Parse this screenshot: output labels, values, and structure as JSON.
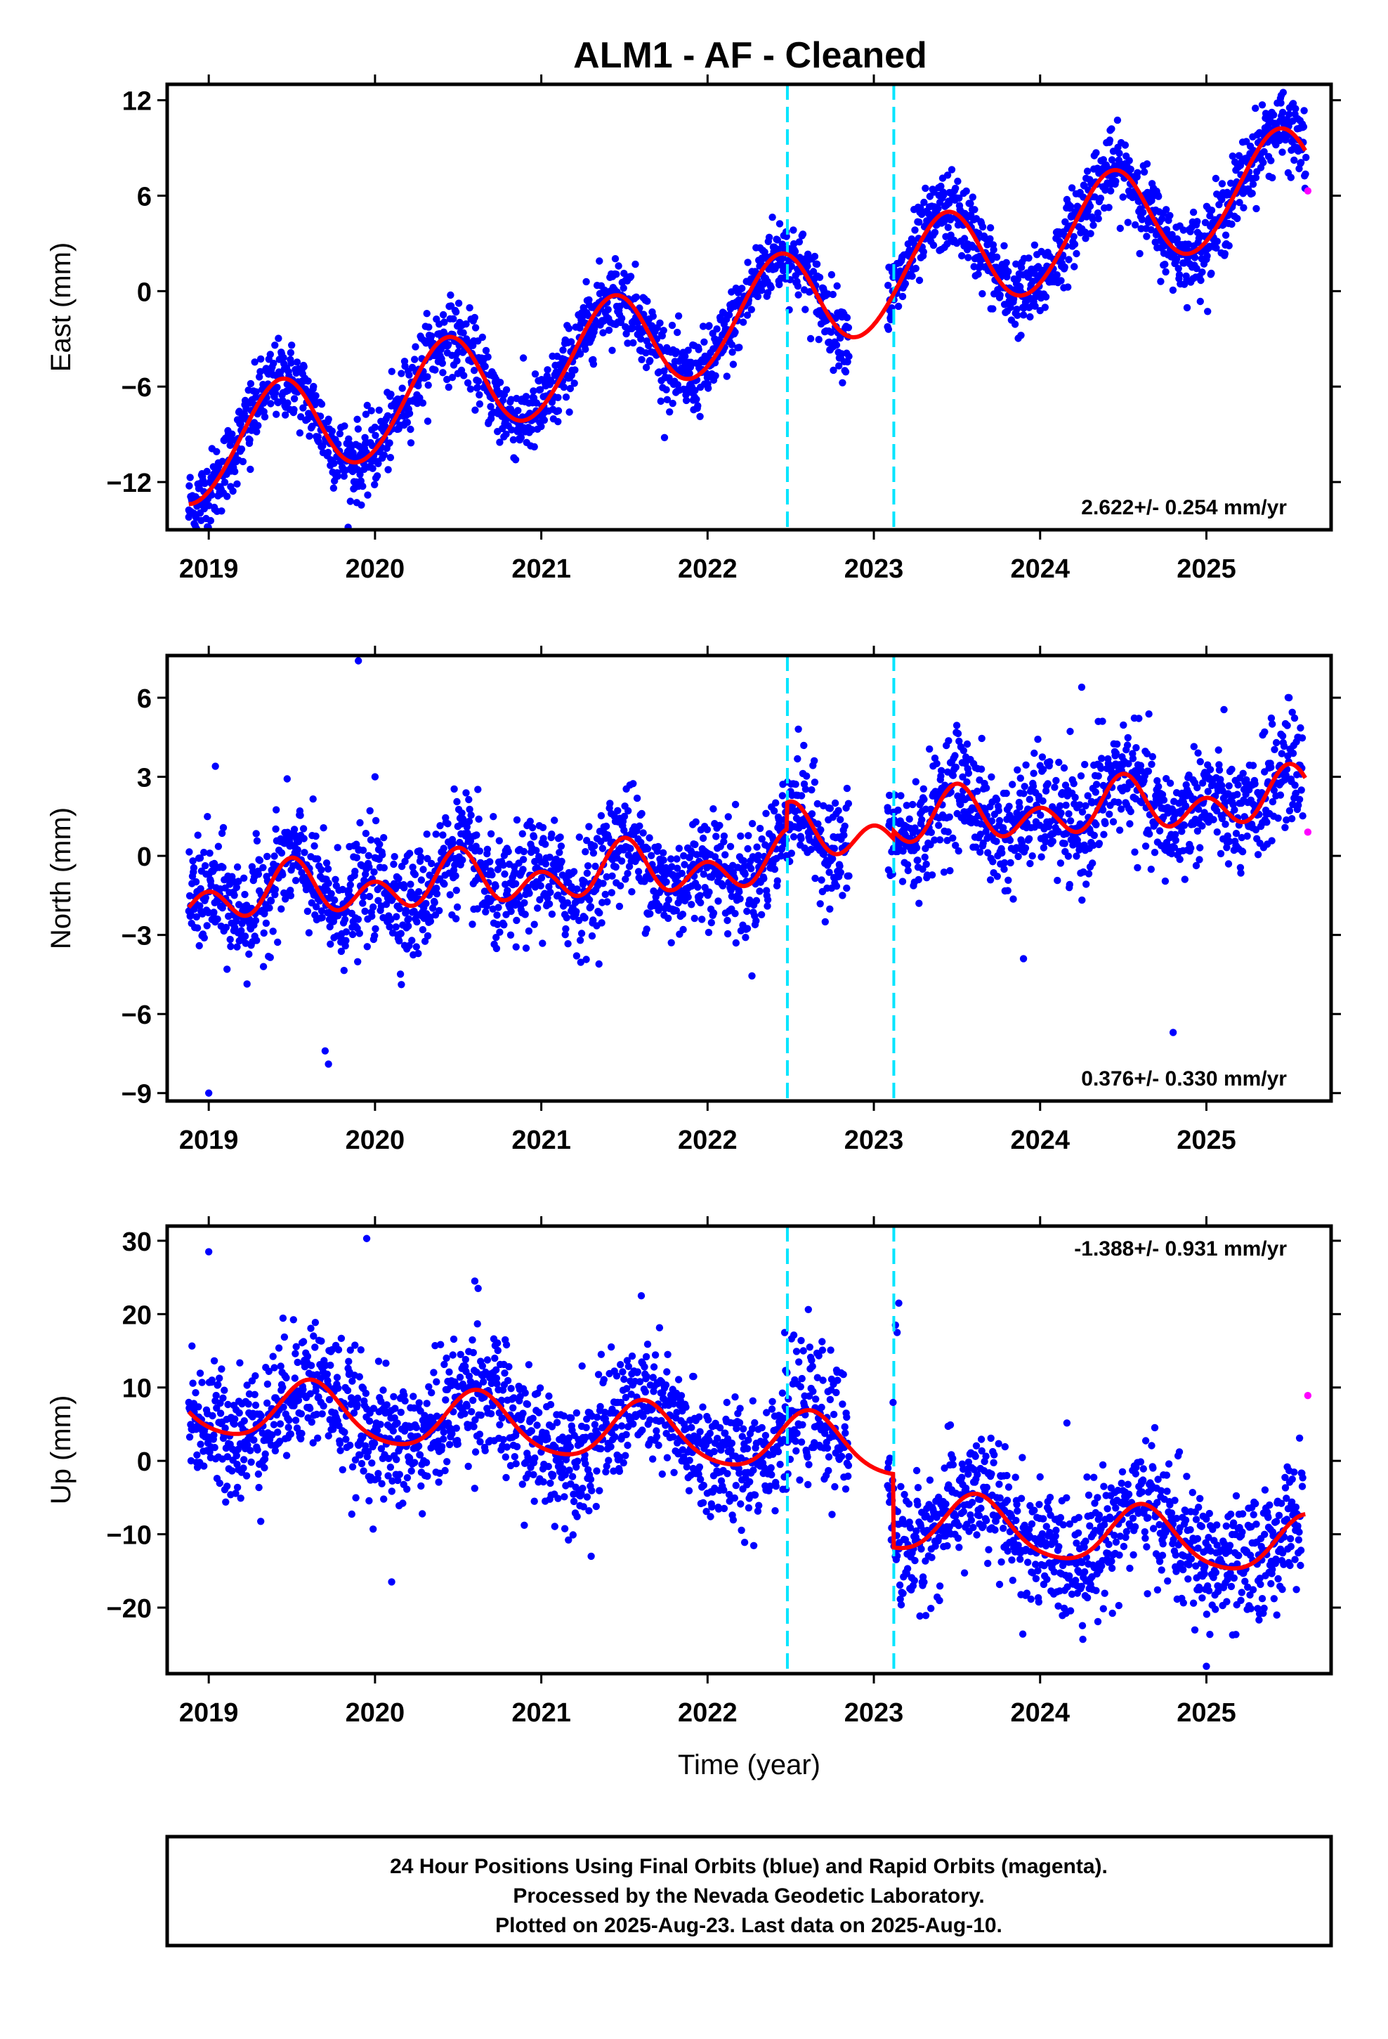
{
  "title": "ALM1  - AF - Cleaned",
  "colors": {
    "final_orbits": "#0000ff",
    "rapid_orbits": "#ff00ff",
    "model_fit": "#ff0000",
    "breaks": "#00e5ff"
  },
  "chart_data": [
    {
      "type": "scatter",
      "ylabel": "East (mm)",
      "xlabel": "",
      "xlim": [
        2018.75,
        2025.75
      ],
      "ylim": [
        -15,
        13
      ],
      "yticks": [
        12,
        6,
        0,
        -6,
        -12
      ],
      "ytick_labels": [
        "12",
        "6",
        "0",
        "−6",
        "−12"
      ],
      "xticks": [
        2019,
        2020,
        2021,
        2022,
        2023,
        2024,
        2025
      ],
      "xtick_labels": [
        "2019",
        "2020",
        "2021",
        "2022",
        "2023",
        "2024",
        "2025"
      ],
      "breaks": [
        2022.48,
        2023.12
      ],
      "rate_label": "2.622+/- 0.254 mm/yr",
      "rate_position": "bottom-right",
      "model": {
        "offset": -10.3,
        "rate": 2.622,
        "steps": [
          0,
          0
        ],
        "ann_amp": 3.2,
        "ann_peak": 2019.42,
        "semi_amp": 0.2,
        "semi_phase": 0.0
      },
      "final_orbits_range": [
        2018.88,
        2025.6
      ],
      "scatter_sd": 1.2,
      "rapid_orbits": [
        {
          "x": 2025.61,
          "y": 6.3
        }
      ],
      "outliers": [
        {
          "x": 2018.88,
          "y": -14.2
        },
        {
          "x": 2019.25,
          "y": -11.2
        },
        {
          "x": 2019.85,
          "y": -11.2
        },
        {
          "x": 2020.75,
          "y": -9.5
        },
        {
          "x": 2021.1,
          "y": -8.2
        },
        {
          "x": 2023.9,
          "y": -1.5
        },
        {
          "x": 2025.0,
          "y": 2.0
        },
        {
          "x": 2025.45,
          "y": 12.3
        }
      ]
    },
    {
      "type": "scatter",
      "ylabel": "North (mm)",
      "xlabel": "",
      "xlim": [
        2018.75,
        2025.75
      ],
      "ylim": [
        -9.3,
        7.6
      ],
      "yticks": [
        6,
        3,
        0,
        -3,
        -6,
        -9
      ],
      "ytick_labels": [
        "6",
        "3",
        "0",
        "−3",
        "−6",
        "−9"
      ],
      "xticks": [
        2019,
        2020,
        2021,
        2022,
        2023,
        2024,
        2025
      ],
      "xtick_labels": [
        "2019",
        "2020",
        "2021",
        "2022",
        "2023",
        "2024",
        "2025"
      ],
      "breaks": [
        2022.48,
        2023.12
      ],
      "rate_label": "0.376+/- 0.330 mm/yr",
      "rate_position": "bottom-right",
      "model": {
        "offset": -1.6,
        "rate": 0.376,
        "steps": [
          1.0,
          0.3
        ],
        "ann_amp": 0.55,
        "ann_peak": 2019.5,
        "semi_amp": 0.75,
        "semi_phase": 2019.0
      },
      "final_orbits_range": [
        2018.88,
        2025.58
      ],
      "scatter_sd": 1.05,
      "rapid_orbits": [
        {
          "x": 2025.61,
          "y": 0.9
        }
      ],
      "outliers": [
        {
          "x": 2019.0,
          "y": -9.0
        },
        {
          "x": 2019.04,
          "y": 3.4
        },
        {
          "x": 2019.7,
          "y": -7.4
        },
        {
          "x": 2019.72,
          "y": -7.9
        },
        {
          "x": 2019.9,
          "y": 7.4
        },
        {
          "x": 2020.0,
          "y": 3.0
        },
        {
          "x": 2023.9,
          "y": -3.9
        },
        {
          "x": 2024.25,
          "y": 6.4
        },
        {
          "x": 2024.35,
          "y": 5.1
        },
        {
          "x": 2024.8,
          "y": -6.7
        },
        {
          "x": 2025.35,
          "y": 4.7
        }
      ]
    },
    {
      "type": "scatter",
      "ylabel": "Up (mm)",
      "xlabel": "Time (year)",
      "xlim": [
        2018.75,
        2025.75
      ],
      "ylim": [
        -29,
        32
      ],
      "yticks": [
        30,
        20,
        10,
        0,
        -10,
        -20
      ],
      "ytick_labels": [
        "30",
        "20",
        "10",
        "0",
        "−10",
        "−20"
      ],
      "xticks": [
        2019,
        2020,
        2021,
        2022,
        2023,
        2024,
        2025
      ],
      "xtick_labels": [
        "2019",
        "2020",
        "2021",
        "2022",
        "2023",
        "2024",
        "2025"
      ],
      "breaks": [
        2022.48,
        2023.12
      ],
      "rate_label": "-1.388+/- 0.931 mm/yr",
      "rate_position": "top-right",
      "model": {
        "offset": 7.5,
        "rate": -1.388,
        "steps": [
          0,
          -10.0
        ],
        "ann_amp": 4.0,
        "ann_peak": 2019.62,
        "semi_amp": 0.6,
        "semi_phase": 2019.1
      },
      "final_orbits_range": [
        2018.88,
        2025.58
      ],
      "scatter_sd": 4.3,
      "rapid_orbits": [
        {
          "x": 2025.61,
          "y": 8.9
        }
      ],
      "outliers": [
        {
          "x": 2019.0,
          "y": 28.5
        },
        {
          "x": 2019.95,
          "y": 30.3
        },
        {
          "x": 2020.1,
          "y": -16.5
        },
        {
          "x": 2020.6,
          "y": 24.5
        },
        {
          "x": 2020.62,
          "y": 23.5
        },
        {
          "x": 2021.3,
          "y": -13.0
        },
        {
          "x": 2023.15,
          "y": 21.5
        },
        {
          "x": 2023.13,
          "y": 18.5
        },
        {
          "x": 2023.14,
          "y": 17.5
        },
        {
          "x": 2025.0,
          "y": -28.0
        }
      ]
    }
  ],
  "footer": {
    "line1": "24 Hour Positions Using Final Orbits (blue) and Rapid Orbits (magenta).",
    "line2": "Processed by the Nevada Geodetic Laboratory.",
    "line3": "Plotted on 2025-Aug-23. Last data on 2025-Aug-10."
  }
}
